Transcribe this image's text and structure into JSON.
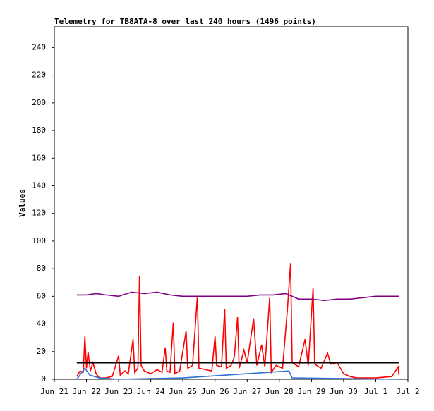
{
  "chart_data": {
    "type": "line",
    "title": "Telemetry for TB8ATA-8 over last 240 hours (1496 points)",
    "y_label": "Values",
    "xlim": [
      0,
      11
    ],
    "xticks": [
      {
        "value": 0,
        "label": "Jun 21"
      },
      {
        "value": 1,
        "label": "Jun 22"
      },
      {
        "value": 2,
        "label": "Jun 23"
      },
      {
        "value": 3,
        "label": "Jun 24"
      },
      {
        "value": 4,
        "label": "Jun 25"
      },
      {
        "value": 5,
        "label": "Jun 26"
      },
      {
        "value": 6,
        "label": "Jun 27"
      },
      {
        "value": 7,
        "label": "Jun 28"
      },
      {
        "value": 8,
        "label": "Jun 29"
      },
      {
        "value": 9,
        "label": "Jun 30"
      },
      {
        "value": 10,
        "label": "Jul 1"
      },
      {
        "value": 11,
        "label": "Jul 2"
      }
    ],
    "ylim": [
      0,
      255
    ],
    "yticks": [
      0,
      20,
      40,
      60,
      80,
      100,
      120,
      140,
      160,
      180,
      200,
      220,
      240
    ],
    "series": [
      {
        "color": "#ff0000",
        "x": [
          0.7,
          0.8,
          0.9,
          0.95,
          1.0,
          1.05,
          1.12,
          1.2,
          1.3,
          1.4,
          1.6,
          1.8,
          2.0,
          2.05,
          2.2,
          2.3,
          2.45,
          2.5,
          2.6,
          2.65,
          2.7,
          2.8,
          3.0,
          3.2,
          3.35,
          3.45,
          3.5,
          3.6,
          3.7,
          3.75,
          3.9,
          4.1,
          4.15,
          4.3,
          4.45,
          4.5,
          4.7,
          4.9,
          5.0,
          5.05,
          5.2,
          5.3,
          5.35,
          5.5,
          5.6,
          5.7,
          5.75,
          5.9,
          6.0,
          6.2,
          6.3,
          6.45,
          6.55,
          6.7,
          6.75,
          6.9,
          7.1,
          7.25,
          7.35,
          7.4,
          7.6,
          7.8,
          7.9,
          8.05,
          8.1,
          8.3,
          8.5,
          8.6,
          8.8,
          9.0,
          9.2,
          9.4,
          10.0,
          10.5,
          10.7,
          10.72
        ],
        "values": [
          2,
          6,
          5,
          31,
          8,
          20,
          6,
          12,
          4,
          1,
          1,
          2,
          17,
          3,
          6,
          4,
          29,
          5,
          8,
          75,
          10,
          6,
          4,
          7,
          5,
          23,
          6,
          5,
          41,
          4,
          6,
          35,
          8,
          10,
          60,
          8,
          7,
          6,
          31,
          10,
          9,
          51,
          8,
          10,
          16,
          45,
          8,
          21,
          12,
          44,
          10,
          25,
          9,
          59,
          5,
          10,
          8,
          50,
          84,
          12,
          9,
          29,
          10,
          66,
          11,
          8,
          19,
          11,
          12,
          4,
          2,
          1,
          1,
          2,
          9,
          3
        ]
      },
      {
        "color": "#3070d0",
        "x": [
          0.7,
          0.95,
          1.1,
          1.4,
          2.0,
          4.0,
          7.3,
          7.4,
          10.7
        ],
        "values": [
          0,
          8,
          3,
          1,
          0,
          1,
          6,
          1,
          0
        ]
      },
      {
        "color": "#800080",
        "x": [
          0.7,
          1.0,
          1.3,
          1.6,
          2.0,
          2.4,
          2.8,
          3.2,
          3.6,
          4.0,
          4.4,
          4.8,
          5.2,
          5.6,
          6.0,
          6.4,
          6.8,
          7.2,
          7.6,
          8.0,
          8.4,
          8.8,
          9.2,
          9.6,
          10.0,
          10.4,
          10.72
        ],
        "values": [
          61,
          61,
          62,
          61,
          60,
          63,
          62,
          63,
          61,
          60,
          60,
          60,
          60,
          60,
          60,
          61,
          61,
          62,
          58,
          58,
          57,
          58,
          58,
          59,
          60,
          60,
          60
        ]
      },
      {
        "color": "#000000",
        "x": [
          0.7,
          10.72
        ],
        "values": [
          12,
          12
        ]
      }
    ]
  }
}
